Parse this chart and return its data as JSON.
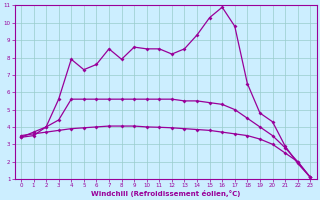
{
  "xlabel": "Windchill (Refroidissement éolien,°C)",
  "xlim": [
    -0.5,
    23.5
  ],
  "ylim": [
    1,
    11
  ],
  "xticks": [
    0,
    1,
    2,
    3,
    4,
    5,
    6,
    7,
    8,
    9,
    10,
    11,
    12,
    13,
    14,
    15,
    16,
    17,
    18,
    19,
    20,
    21,
    22,
    23
  ],
  "yticks": [
    1,
    2,
    3,
    4,
    5,
    6,
    7,
    8,
    9,
    10,
    11
  ],
  "bg_color": "#cceeff",
  "line_color": "#990099",
  "grid_color": "#99cccc",
  "line1_x": [
    0,
    1,
    2,
    3,
    4,
    5,
    6,
    7,
    8,
    9,
    10,
    11,
    12,
    13,
    14,
    15,
    16,
    17,
    18,
    19,
    20,
    21,
    22,
    23
  ],
  "line1_y": [
    3.5,
    3.6,
    3.7,
    3.8,
    3.9,
    3.95,
    4.0,
    4.05,
    4.05,
    4.05,
    4.0,
    3.98,
    3.95,
    3.9,
    3.85,
    3.8,
    3.7,
    3.6,
    3.5,
    3.3,
    3.0,
    2.5,
    2.0,
    1.1
  ],
  "line2_x": [
    0,
    1,
    2,
    3,
    4,
    5,
    6,
    7,
    8,
    9,
    10,
    11,
    12,
    13,
    14,
    15,
    16,
    17,
    18,
    19,
    20,
    21,
    22,
    23
  ],
  "line2_y": [
    3.4,
    3.5,
    4.0,
    4.4,
    5.6,
    5.6,
    5.6,
    5.6,
    5.6,
    5.6,
    5.6,
    5.6,
    5.6,
    5.5,
    5.5,
    5.4,
    5.3,
    5.0,
    4.5,
    4.0,
    3.5,
    2.8,
    2.0,
    1.1
  ],
  "line3_x": [
    0,
    1,
    2,
    3,
    4,
    5,
    6,
    7,
    8,
    9,
    10,
    11,
    12,
    13,
    14,
    15,
    16,
    17,
    18,
    19,
    20,
    21,
    22,
    23
  ],
  "line3_y": [
    3.4,
    3.7,
    4.0,
    5.6,
    7.9,
    7.3,
    7.6,
    8.5,
    7.9,
    8.6,
    8.5,
    8.5,
    8.2,
    8.5,
    9.3,
    10.3,
    10.9,
    9.8,
    6.5,
    4.8,
    4.3,
    2.9,
    1.9,
    1.1
  ]
}
